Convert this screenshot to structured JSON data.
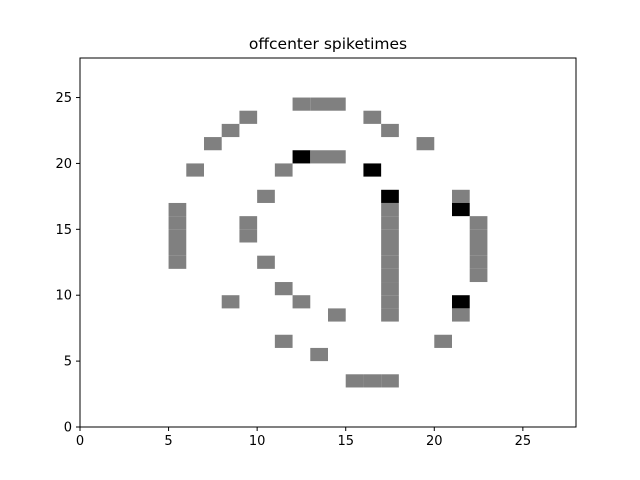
{
  "chart_data": {
    "type": "heatmap",
    "title": "offcenter spiketimes",
    "xlabel": "",
    "ylabel": "",
    "xlim": [
      0,
      28
    ],
    "ylim": [
      0,
      28
    ],
    "xticks": [
      0,
      5,
      10,
      15,
      20,
      25
    ],
    "yticks": [
      0,
      5,
      10,
      15,
      20,
      25
    ],
    "grid": false,
    "cell_colors": {
      "gray": "#808080",
      "black": "#000000"
    },
    "cells": [
      {
        "x": 12,
        "y": 24,
        "value": "gray"
      },
      {
        "x": 13,
        "y": 24,
        "value": "gray"
      },
      {
        "x": 14,
        "y": 24,
        "value": "gray"
      },
      {
        "x": 9,
        "y": 23,
        "value": "gray"
      },
      {
        "x": 16,
        "y": 23,
        "value": "gray"
      },
      {
        "x": 8,
        "y": 22,
        "value": "gray"
      },
      {
        "x": 17,
        "y": 22,
        "value": "gray"
      },
      {
        "x": 7,
        "y": 21,
        "value": "gray"
      },
      {
        "x": 19,
        "y": 21,
        "value": "gray"
      },
      {
        "x": 12,
        "y": 20,
        "value": "black"
      },
      {
        "x": 13,
        "y": 20,
        "value": "gray"
      },
      {
        "x": 14,
        "y": 20,
        "value": "gray"
      },
      {
        "x": 6,
        "y": 19,
        "value": "gray"
      },
      {
        "x": 11,
        "y": 19,
        "value": "gray"
      },
      {
        "x": 16,
        "y": 19,
        "value": "black"
      },
      {
        "x": 10,
        "y": 17,
        "value": "gray"
      },
      {
        "x": 17,
        "y": 17,
        "value": "black"
      },
      {
        "x": 21,
        "y": 17,
        "value": "gray"
      },
      {
        "x": 5,
        "y": 16,
        "value": "gray"
      },
      {
        "x": 17,
        "y": 16,
        "value": "gray"
      },
      {
        "x": 21,
        "y": 16,
        "value": "black"
      },
      {
        "x": 5,
        "y": 15,
        "value": "gray"
      },
      {
        "x": 9,
        "y": 15,
        "value": "gray"
      },
      {
        "x": 17,
        "y": 15,
        "value": "gray"
      },
      {
        "x": 22,
        "y": 15,
        "value": "gray"
      },
      {
        "x": 5,
        "y": 14,
        "value": "gray"
      },
      {
        "x": 9,
        "y": 14,
        "value": "gray"
      },
      {
        "x": 17,
        "y": 14,
        "value": "gray"
      },
      {
        "x": 22,
        "y": 14,
        "value": "gray"
      },
      {
        "x": 5,
        "y": 13,
        "value": "gray"
      },
      {
        "x": 17,
        "y": 13,
        "value": "gray"
      },
      {
        "x": 22,
        "y": 13,
        "value": "gray"
      },
      {
        "x": 5,
        "y": 12,
        "value": "gray"
      },
      {
        "x": 10,
        "y": 12,
        "value": "gray"
      },
      {
        "x": 17,
        "y": 12,
        "value": "gray"
      },
      {
        "x": 22,
        "y": 12,
        "value": "gray"
      },
      {
        "x": 17,
        "y": 11,
        "value": "gray"
      },
      {
        "x": 22,
        "y": 11,
        "value": "gray"
      },
      {
        "x": 11,
        "y": 10,
        "value": "gray"
      },
      {
        "x": 17,
        "y": 10,
        "value": "gray"
      },
      {
        "x": 8,
        "y": 9,
        "value": "gray"
      },
      {
        "x": 12,
        "y": 9,
        "value": "gray"
      },
      {
        "x": 17,
        "y": 9,
        "value": "gray"
      },
      {
        "x": 21,
        "y": 9,
        "value": "black"
      },
      {
        "x": 14,
        "y": 8,
        "value": "gray"
      },
      {
        "x": 17,
        "y": 8,
        "value": "gray"
      },
      {
        "x": 21,
        "y": 8,
        "value": "gray"
      },
      {
        "x": 11,
        "y": 6,
        "value": "gray"
      },
      {
        "x": 20,
        "y": 6,
        "value": "gray"
      },
      {
        "x": 13,
        "y": 5,
        "value": "gray"
      },
      {
        "x": 15,
        "y": 3,
        "value": "gray"
      },
      {
        "x": 16,
        "y": 3,
        "value": "gray"
      },
      {
        "x": 17,
        "y": 3,
        "value": "gray"
      }
    ]
  }
}
